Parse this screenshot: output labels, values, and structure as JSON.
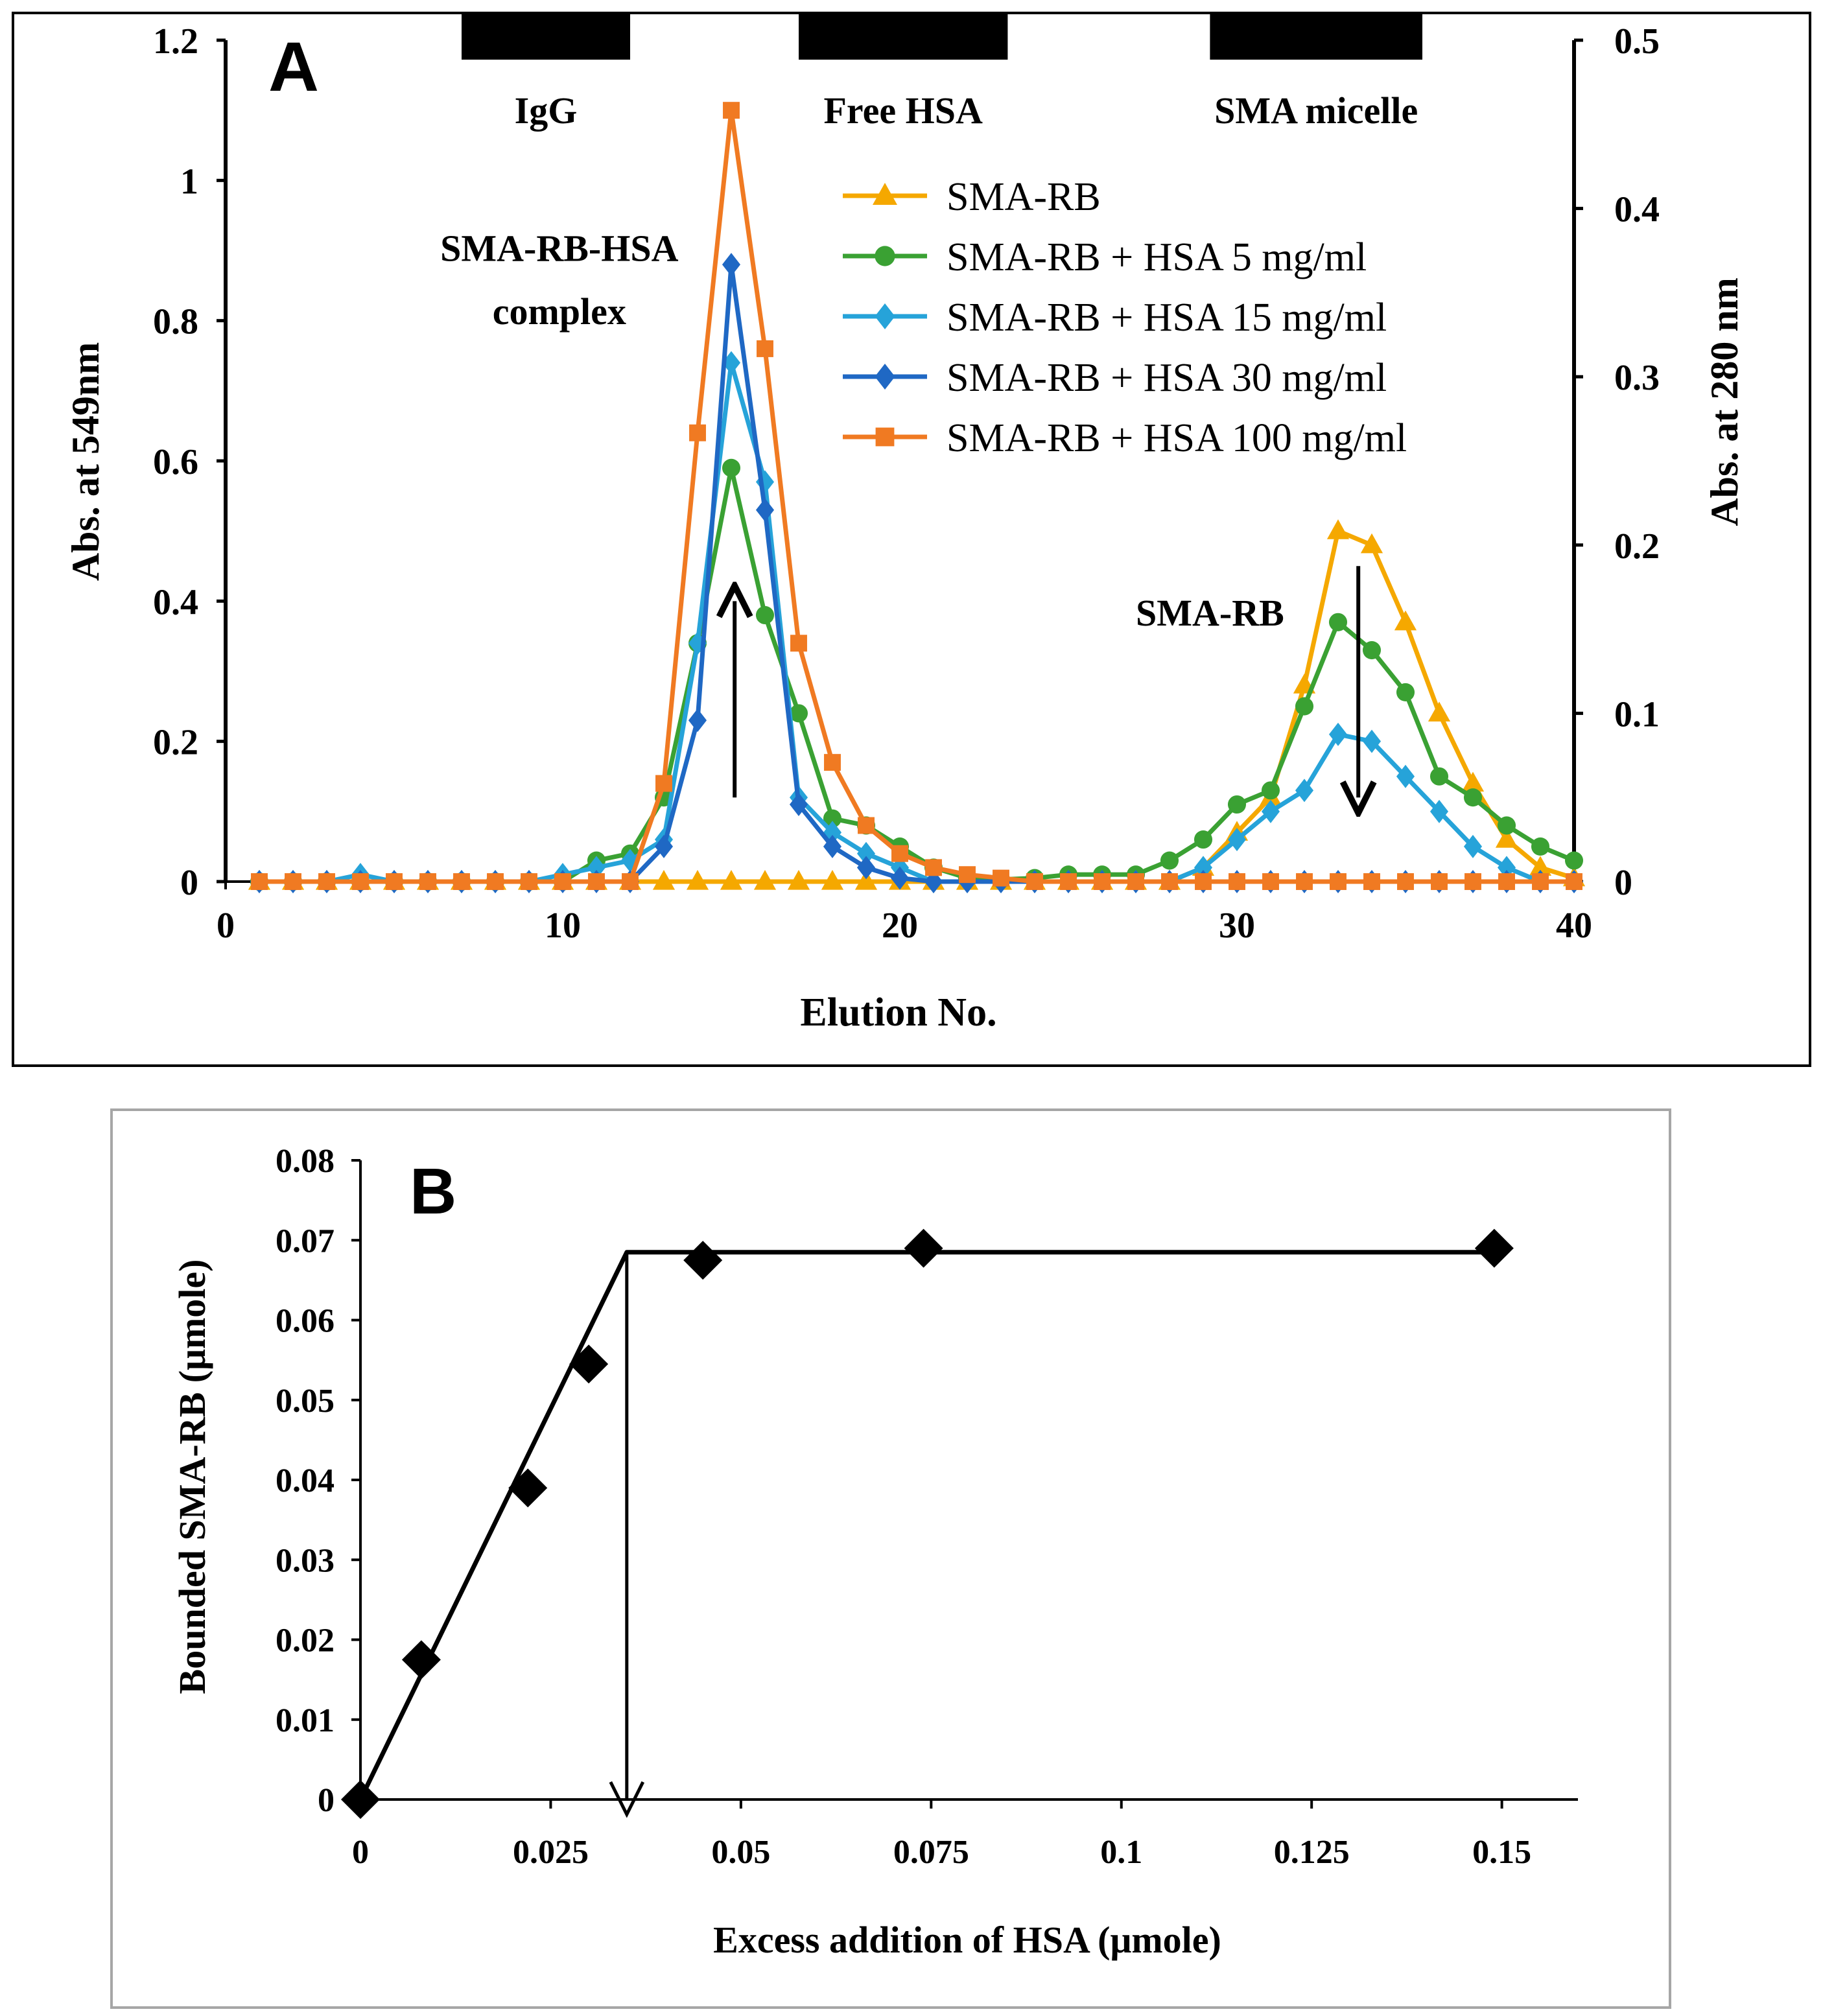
{
  "colors": {
    "black": "#000000",
    "panel_b_border": "#a6a6a6",
    "series": [
      "#f5a800",
      "#3aa133",
      "#26a3d9",
      "#1f68c4",
      "#f07a22"
    ]
  },
  "chart_data": [
    {
      "type": "line",
      "panel_label": "A",
      "xlabel": "Elution No.",
      "ylabel": "Abs. at 549nm",
      "y2label": "Abs. at 280 nm",
      "xlim": [
        0,
        40
      ],
      "ylim": [
        0,
        1.2
      ],
      "y2lim": [
        0,
        0.5
      ],
      "xticks": [
        0,
        10,
        20,
        30,
        40
      ],
      "xtick_labels": [
        "0",
        "10",
        "20",
        "30",
        "40"
      ],
      "yticks": [
        0,
        0.2,
        0.4,
        0.6,
        0.8,
        1.0,
        1.2
      ],
      "ytick_labels": [
        "0",
        "0.2",
        "0.4",
        "0.6",
        "0.8",
        "1",
        "1.2"
      ],
      "y2ticks": [
        0,
        0.1,
        0.2,
        0.3,
        0.4,
        0.5
      ],
      "y2tick_labels": [
        "0",
        "0.1",
        "0.2",
        "0.3",
        "0.4",
        "0.5"
      ],
      "legend_position": "top-right",
      "fraction_bars": [
        {
          "label": "IgG",
          "x_start": 7,
          "x_end": 12
        },
        {
          "label": "Free HSA",
          "x_start": 17,
          "x_end": 23.2
        },
        {
          "label": "SMA micelle",
          "x_start": 29.2,
          "x_end": 35.5
        }
      ],
      "annotations": [
        {
          "text": "SMA-RB-HSA",
          "x": 9.9,
          "y": 0.885
        },
        {
          "text": "complex",
          "x": 9.9,
          "y": 0.795
        },
        {
          "text": "SMA-RB",
          "x": 29.2,
          "y": 0.365
        }
      ],
      "arrows": [
        {
          "direction": "up",
          "x": 15.1,
          "y_from": 0.12,
          "y_to": 0.4
        },
        {
          "direction": "down",
          "x": 33.6,
          "y_from": 0.45,
          "y_to": 0.12
        }
      ],
      "x": [
        1,
        2,
        3,
        4,
        5,
        6,
        7,
        8,
        9,
        10,
        11,
        12,
        13,
        14,
        15,
        16,
        17,
        18,
        19,
        20,
        21,
        22,
        23,
        24,
        25,
        26,
        27,
        28,
        29,
        30,
        31,
        32,
        33,
        34,
        35,
        36,
        37,
        38,
        39,
        40
      ],
      "series": [
        {
          "name": "SMA-RB",
          "marker": "triangle",
          "values": [
            0,
            0,
            0,
            0,
            0,
            0,
            0,
            0,
            0,
            0,
            0,
            0,
            0,
            0,
            0,
            0,
            0,
            0,
            0,
            0,
            0,
            0,
            0,
            0,
            0,
            0,
            0,
            0,
            0.02,
            0.07,
            0.12,
            0.28,
            0.5,
            0.48,
            0.37,
            0.24,
            0.14,
            0.06,
            0.02,
            0.005
          ]
        },
        {
          "name": "SMA-RB + HSA 5 mg/ml",
          "marker": "circle",
          "values": [
            0,
            0,
            0,
            0,
            0,
            0,
            0,
            0,
            0,
            0,
            0.03,
            0.04,
            0.12,
            0.34,
            0.59,
            0.38,
            0.24,
            0.09,
            0.08,
            0.05,
            0.02,
            0.005,
            0.003,
            0.005,
            0.01,
            0.01,
            0.01,
            0.03,
            0.06,
            0.11,
            0.13,
            0.25,
            0.37,
            0.33,
            0.27,
            0.15,
            0.12,
            0.08,
            0.05,
            0.03
          ]
        },
        {
          "name": "SMA-RB + HSA 15 mg/ml",
          "marker": "diamond",
          "values": [
            0,
            0,
            0,
            0.01,
            0,
            0,
            0,
            0,
            0,
            0.01,
            0.02,
            0.03,
            0.06,
            0.34,
            0.74,
            0.57,
            0.12,
            0.07,
            0.04,
            0.02,
            0,
            0,
            0,
            0,
            0,
            0,
            0,
            0,
            0.02,
            0.06,
            0.1,
            0.13,
            0.21,
            0.2,
            0.15,
            0.1,
            0.05,
            0.02,
            0,
            0
          ]
        },
        {
          "name": "SMA-RB + HSA 30 mg/ml",
          "marker": "diamond",
          "values": [
            0,
            0,
            0,
            0,
            0,
            0,
            0,
            0,
            0,
            0,
            0,
            0,
            0.05,
            0.23,
            0.88,
            0.53,
            0.11,
            0.05,
            0.02,
            0.005,
            0,
            0,
            0,
            0,
            0,
            0,
            0,
            0,
            0,
            0,
            0,
            0,
            0,
            0,
            0,
            0,
            0,
            0,
            0,
            0
          ]
        },
        {
          "name": "SMA-RB + HSA 100 mg/ml",
          "marker": "square",
          "values": [
            0,
            0,
            0,
            0,
            0,
            0,
            0,
            0,
            0,
            0,
            0,
            0,
            0.14,
            0.64,
            1.1,
            0.76,
            0.34,
            0.17,
            0.08,
            0.04,
            0.02,
            0.01,
            0.005,
            0,
            0,
            0,
            0,
            0,
            0,
            0,
            0,
            0,
            0,
            0,
            0,
            0,
            0,
            0,
            0,
            0
          ]
        }
      ]
    },
    {
      "type": "scatter",
      "panel_label": "B",
      "xlabel": "Excess addition of HSA (μmole)",
      "ylabel": "Bounded SMA-RB (μmole)",
      "xlim": [
        0,
        0.16
      ],
      "ylim": [
        0,
        0.08
      ],
      "xticks": [
        0,
        0.025,
        0.05,
        0.075,
        0.1,
        0.125,
        0.15
      ],
      "xtick_labels": [
        "0",
        "0.025",
        "0.05",
        "0.075",
        "0.1",
        "0.125",
        "0.15"
      ],
      "yticks": [
        0,
        0.01,
        0.02,
        0.03,
        0.04,
        0.05,
        0.06,
        0.07,
        0.08
      ],
      "ytick_labels": [
        "0",
        "0.01",
        "0.02",
        "0.03",
        "0.04",
        "0.05",
        "0.06",
        "0.07",
        "0.08"
      ],
      "points": [
        {
          "x": 0,
          "y": 0
        },
        {
          "x": 0.008,
          "y": 0.0175
        },
        {
          "x": 0.022,
          "y": 0.039
        },
        {
          "x": 0.03,
          "y": 0.0545
        },
        {
          "x": 0.045,
          "y": 0.0675
        },
        {
          "x": 0.074,
          "y": 0.069
        },
        {
          "x": 0.149,
          "y": 0.069
        }
      ],
      "fit_line": [
        {
          "x": 0,
          "y": 0
        },
        {
          "x": 0.035,
          "y": 0.0685
        },
        {
          "x": 0.149,
          "y": 0.0685
        }
      ],
      "arrows": [
        {
          "direction": "down",
          "x": 0.035,
          "y_from": 0.0685,
          "y_to": 0
        }
      ]
    }
  ]
}
